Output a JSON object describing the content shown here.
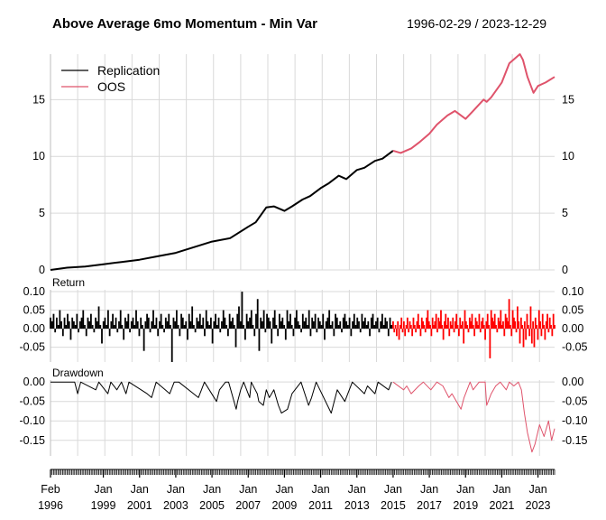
{
  "chart_data": {
    "type": "line",
    "title": "Above Average 6mo Momentum - Min Var",
    "date_range": "1996-02-29 / 2023-12-29",
    "colors": {
      "replication": "#000000",
      "oos": "#df536b",
      "oos_bars": "#ff0000",
      "grid": "#d9d9d9"
    },
    "legend": {
      "position": "top-left",
      "entries": [
        "Replication",
        "OOS"
      ]
    },
    "split_date": "2015-01",
    "x_start": "1996-02-29",
    "x_end": "2023-12-29",
    "x_tick_labels": [
      {
        "date": "1996-02",
        "top": "Feb",
        "bottom": "1996"
      },
      {
        "date": "1999-01",
        "top": "Jan",
        "bottom": "1999"
      },
      {
        "date": "2001-01",
        "top": "Jan",
        "bottom": "2001"
      },
      {
        "date": "2003-01",
        "top": "Jan",
        "bottom": "2003"
      },
      {
        "date": "2005-01",
        "top": "Jan",
        "bottom": "2005"
      },
      {
        "date": "2007-01",
        "top": "Jan",
        "bottom": "2007"
      },
      {
        "date": "2009-01",
        "top": "Jan",
        "bottom": "2009"
      },
      {
        "date": "2011-01",
        "top": "Jan",
        "bottom": "2011"
      },
      {
        "date": "2013-01",
        "top": "Jan",
        "bottom": "2013"
      },
      {
        "date": "2015-01",
        "top": "Jan",
        "bottom": "2015"
      },
      {
        "date": "2017-01",
        "top": "Jan",
        "bottom": "2017"
      },
      {
        "date": "2019-01",
        "top": "Jan",
        "bottom": "2019"
      },
      {
        "date": "2021-01",
        "top": "Jan",
        "bottom": "2021"
      },
      {
        "date": "2023-01",
        "top": "Jan",
        "bottom": "2023"
      }
    ],
    "panels": [
      {
        "name": "cumulative",
        "label": "",
        "ylim": [
          0,
          19
        ],
        "ticks": [
          "0",
          "5",
          "10",
          "15"
        ],
        "tick_values": [
          0,
          5,
          10,
          15
        ],
        "series": [
          {
            "name": "Replication",
            "x": [
              "1996-02",
              "1997-01",
              "1998-01",
              "1999-01",
              "2000-01",
              "2001-01",
              "2002-01",
              "2003-01",
              "2004-01",
              "2005-01",
              "2006-01",
              "2007-01",
              "2007-06",
              "2008-01",
              "2008-06",
              "2009-01",
              "2009-06",
              "2010-01",
              "2010-06",
              "2011-01",
              "2011-06",
              "2012-01",
              "2012-06",
              "2013-01",
              "2013-06",
              "2014-01",
              "2014-06",
              "2015-01"
            ],
            "values": [
              0,
              0.2,
              0.3,
              0.5,
              0.7,
              0.9,
              1.2,
              1.5,
              2.0,
              2.5,
              2.8,
              3.8,
              4.2,
              5.5,
              5.6,
              5.2,
              5.6,
              6.2,
              6.5,
              7.2,
              7.6,
              8.3,
              8.0,
              8.8,
              9.0,
              9.6,
              9.8,
              10.5
            ]
          },
          {
            "name": "OOS",
            "x": [
              "2015-01",
              "2015-06",
              "2016-01",
              "2016-06",
              "2017-01",
              "2017-06",
              "2018-01",
              "2018-06",
              "2019-01",
              "2019-06",
              "2020-01",
              "2020-03",
              "2020-06",
              "2021-01",
              "2021-06",
              "2022-01",
              "2022-03",
              "2022-06",
              "2022-10",
              "2023-01",
              "2023-06",
              "2023-12"
            ],
            "values": [
              10.5,
              10.3,
              10.7,
              11.2,
              12.0,
              12.8,
              13.6,
              14.0,
              13.3,
              14.0,
              15.0,
              14.8,
              15.2,
              16.5,
              18.2,
              19.0,
              18.5,
              17.0,
              15.6,
              16.2,
              16.5,
              17.0
            ]
          }
        ]
      },
      {
        "name": "returns",
        "label": "Return",
        "ylim": [
          -0.09,
          0.105
        ],
        "ticks": [
          "0.10",
          "0.05",
          "0.00",
          "-0.05"
        ],
        "tick_values": [
          0.1,
          0.05,
          0.0,
          -0.05
        ],
        "series": [
          {
            "name": "Replication",
            "x_range": [
              "1996-02",
              "2014-12"
            ],
            "values": [
              0.03,
              0.02,
              0.04,
              -0.01,
              0.03,
              0.01,
              0.05,
              0.02,
              -0.02,
              0.03,
              0.01,
              0.04,
              0.02,
              -0.03,
              0.03,
              0.02,
              0.01,
              0.04,
              -0.01,
              0.02,
              0.03,
              0.05,
              0.01,
              -0.02,
              0.03,
              0.02,
              0.04,
              0.01,
              -0.01,
              0.03,
              0.02,
              0.06,
              0.01,
              -0.04,
              0.02,
              0.03,
              0.01,
              0.05,
              -0.02,
              0.02,
              0.04,
              0.01,
              0.03,
              -0.01,
              0.02,
              0.05,
              0.01,
              -0.03,
              0.03,
              0.02,
              0.04,
              -0.01,
              0.02,
              0.03,
              0.01,
              0.05,
              0.02,
              -0.02,
              0.03,
              0.01,
              -0.06,
              0.02,
              0.04,
              0.03,
              -0.01,
              0.02,
              0.05,
              0.01,
              0.03,
              -0.02,
              0.02,
              0.04,
              0.01,
              -0.01,
              0.03,
              0.02,
              0.04,
              0.01,
              -0.09,
              0.03,
              0.02,
              0.05,
              0.01,
              -0.02,
              0.04,
              0.03,
              0.01,
              0.02,
              -0.03,
              0.04,
              0.02,
              0.06,
              0.01,
              -0.01,
              0.03,
              0.02,
              0.04,
              0.01,
              0.03,
              -0.02,
              0.05,
              0.02,
              0.01,
              0.03,
              -0.04,
              0.02,
              0.04,
              0.01,
              0.03,
              -0.01,
              0.02,
              0.05,
              0.03,
              0.01,
              -0.02,
              0.04,
              0.02,
              0.03,
              0.01,
              -0.05,
              0.04,
              0.06,
              0.02,
              0.1,
              0.01,
              -0.03,
              0.04,
              0.02,
              0.03,
              0.05,
              0.01,
              -0.02,
              0.04,
              0.08,
              -0.06,
              0.03,
              0.02,
              0.05,
              -0.01,
              0.04,
              0.03,
              0.02,
              -0.04,
              0.03,
              0.05,
              0.01,
              -0.02,
              0.04,
              0.02,
              0.03,
              0.01,
              -0.03,
              0.05,
              0.02,
              0.04,
              0.01,
              -0.02,
              0.03,
              0.05,
              0.02,
              0.01,
              -0.01,
              0.04,
              0.02,
              0.03,
              0.01,
              0.05,
              -0.02,
              0.03,
              0.02,
              0.04,
              -0.01,
              0.03,
              0.02,
              0.01,
              0.04,
              -0.03,
              0.02,
              0.03,
              0.05,
              0.01,
              0.02,
              -0.02,
              0.04,
              0.03,
              0.01,
              0.02,
              -0.01,
              0.03,
              0.04,
              0.02,
              0.01,
              0.03,
              -0.02,
              0.02,
              0.04,
              0.01,
              0.03,
              0.02,
              -0.01,
              0.04,
              0.02,
              0.03,
              0.01,
              0.02,
              -0.02,
              0.03,
              0.04,
              0.01,
              0.02,
              0.03,
              -0.01,
              0.02,
              0.04,
              0.01,
              0.03,
              0.02,
              -0.02,
              0.03,
              0.01
            ]
          },
          {
            "name": "OOS",
            "x_range": [
              "2015-01",
              "2023-12"
            ],
            "values": [
              0.02,
              -0.01,
              0.01,
              -0.02,
              0.02,
              -0.03,
              0.01,
              0.03,
              -0.01,
              0.02,
              -0.02,
              0.01,
              0.03,
              -0.01,
              0.02,
              0.01,
              -0.02,
              0.03,
              0.01,
              -0.01,
              0.02,
              0.04,
              0.01,
              -0.02,
              0.03,
              0.02,
              0.01,
              -0.01,
              0.03,
              0.05,
              0.02,
              0.01,
              -0.02,
              0.03,
              0.01,
              0.02,
              0.04,
              -0.01,
              0.03,
              0.02,
              0.05,
              0.01,
              -0.03,
              0.02,
              0.04,
              0.01,
              0.03,
              -0.02,
              0.02,
              0.01,
              0.03,
              -0.01,
              0.02,
              0.04,
              0.01,
              -0.02,
              0.03,
              0.01,
              0.02,
              -0.04,
              0.05,
              0.02,
              0.01,
              -0.01,
              0.03,
              0.02,
              0.04,
              0.01,
              -0.02,
              0.03,
              0.02,
              0.01,
              0.04,
              -0.01,
              0.02,
              0.03,
              0.01,
              -0.03,
              0.02,
              0.04,
              0.01,
              -0.08,
              0.05,
              0.03,
              0.02,
              0.04,
              0.01,
              -0.01,
              0.03,
              0.02,
              0.05,
              0.01,
              0.02,
              -0.02,
              0.04,
              0.03,
              0.02,
              0.08,
              0.01,
              -0.02,
              0.05,
              0.03,
              0.02,
              -0.01,
              0.06,
              0.02,
              -0.04,
              0.03,
              0.01,
              -0.05,
              0.02,
              -0.03,
              0.04,
              0.01,
              -0.02,
              0.06,
              -0.04,
              0.02,
              -0.05,
              0.03,
              0.01,
              -0.03,
              0.05,
              0.02,
              -0.02,
              0.04,
              0.01,
              -0.03,
              0.02,
              0.04,
              -0.01,
              0.03,
              0.01,
              -0.02,
              0.04,
              0.01
            ]
          }
        ]
      },
      {
        "name": "drawdown",
        "label": "Drawdown",
        "ylim": [
          -0.19,
          0.005
        ],
        "ticks": [
          "0.00",
          "-0.05",
          "-0.10",
          "-0.15"
        ],
        "tick_values": [
          0.0,
          -0.05,
          -0.1,
          -0.15
        ],
        "series": [
          {
            "name": "Replication",
            "x": [
              "1996-02",
              "1997-06",
              "1997-08",
              "1997-10",
              "1998-08",
              "1998-10",
              "1999-04",
              "1999-06",
              "1999-10",
              "2000-01",
              "2000-04",
              "2000-06",
              "2001-06",
              "2001-09",
              "2001-12",
              "2002-06",
              "2002-09",
              "2002-12",
              "2003-03",
              "2004-04",
              "2004-06",
              "2004-08",
              "2005-04",
              "2005-06",
              "2005-10",
              "2005-12",
              "2006-05",
              "2006-06",
              "2006-08",
              "2006-10",
              "2007-02",
              "2007-03",
              "2007-07",
              "2007-08",
              "2007-11",
              "2008-01",
              "2008-03",
              "2008-06",
              "2008-09",
              "2008-11",
              "2009-03",
              "2009-06",
              "2009-12",
              "2010-05",
              "2010-07",
              "2010-10",
              "2011-08",
              "2011-10",
              "2011-12",
              "2012-05",
              "2012-07",
              "2012-10",
              "2013-06",
              "2013-08",
              "2014-01",
              "2014-03",
              "2014-10",
              "2014-12"
            ],
            "values": [
              0,
              0,
              -0.03,
              0,
              -0.02,
              0,
              -0.03,
              0,
              -0.02,
              0,
              -0.03,
              0,
              -0.03,
              -0.04,
              0,
              -0.02,
              -0.03,
              0,
              0,
              -0.04,
              -0.02,
              0,
              -0.05,
              -0.02,
              0,
              0,
              -0.07,
              -0.05,
              -0.02,
              0,
              -0.04,
              0,
              -0.03,
              -0.05,
              -0.06,
              -0.02,
              -0.04,
              -0.02,
              -0.06,
              -0.08,
              -0.07,
              -0.03,
              0,
              -0.06,
              -0.04,
              0,
              -0.08,
              -0.05,
              -0.02,
              -0.05,
              -0.03,
              0,
              -0.03,
              -0.01,
              -0.03,
              0,
              -0.02,
              0
            ]
          },
          {
            "name": "OOS",
            "x": [
              "2015-01",
              "2015-08",
              "2015-10",
              "2016-01",
              "2016-06",
              "2016-09",
              "2017-02",
              "2017-06",
              "2017-10",
              "2018-02",
              "2018-04",
              "2018-10",
              "2018-12",
              "2019-04",
              "2019-06",
              "2019-10",
              "2020-02",
              "2020-03",
              "2020-06",
              "2020-09",
              "2020-12",
              "2021-04",
              "2021-06",
              "2021-09",
              "2021-12",
              "2022-02",
              "2022-04",
              "2022-06",
              "2022-09",
              "2022-11",
              "2023-02",
              "2023-05",
              "2023-08",
              "2023-10",
              "2023-12"
            ],
            "values": [
              0,
              -0.02,
              -0.01,
              -0.03,
              -0.01,
              0,
              -0.02,
              0,
              -0.01,
              -0.04,
              -0.03,
              -0.07,
              -0.04,
              0,
              -0.02,
              0,
              0,
              -0.06,
              -0.03,
              -0.01,
              0,
              -0.02,
              0,
              -0.01,
              0,
              -0.02,
              -0.08,
              -0.13,
              -0.18,
              -0.16,
              -0.11,
              -0.14,
              -0.1,
              -0.15,
              -0.12
            ]
          }
        ]
      }
    ]
  }
}
